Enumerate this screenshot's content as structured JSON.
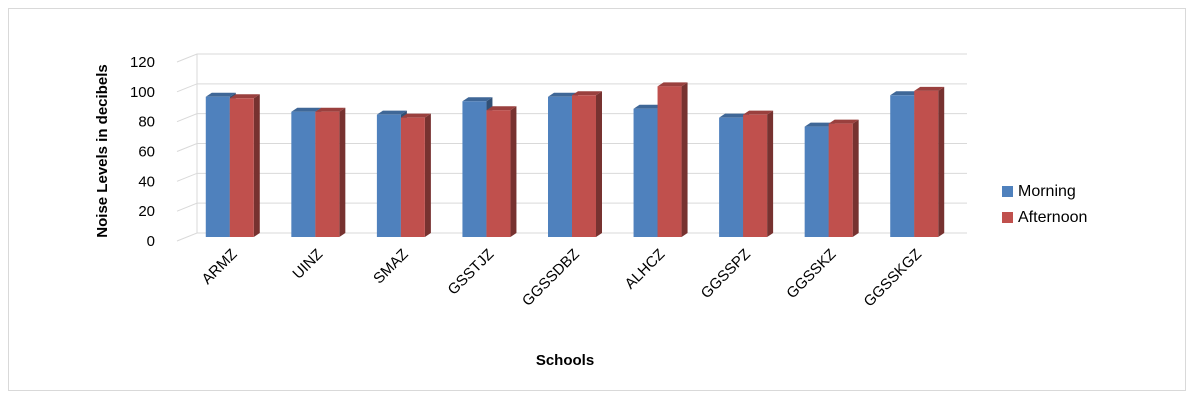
{
  "chart_data": {
    "type": "bar",
    "title": "",
    "xlabel": "Schools",
    "ylabel": "Noise Levels in decibels",
    "ylim": [
      0,
      120
    ],
    "yticks": [
      0,
      20,
      40,
      60,
      80,
      100,
      120
    ],
    "grid": true,
    "legend_position": "right",
    "categories": [
      "ARMZ",
      "UINZ",
      "SMAZ",
      "GSSTJZ",
      "GGSSDBZ",
      "ALHCZ",
      "GGSSPZ",
      "GGSSKZ",
      "GGSSKGZ"
    ],
    "series": [
      {
        "name": "Morning",
        "color": "#4f81bd",
        "values": [
          94,
          84,
          82,
          91,
          94,
          86,
          80,
          74,
          95
        ]
      },
      {
        "name": "Afternoon",
        "color": "#c0504d",
        "values": [
          93,
          84,
          80,
          85,
          95,
          101,
          82,
          76,
          98
        ]
      }
    ]
  }
}
